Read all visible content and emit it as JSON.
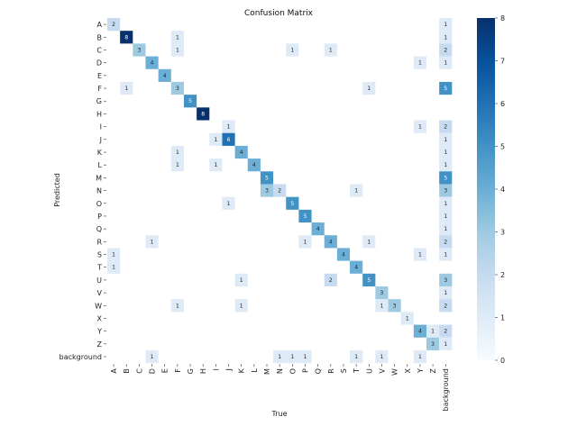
{
  "chart_data": {
    "type": "heatmap",
    "title": "Confusion Matrix",
    "xlabel": "True",
    "ylabel": "Predicted",
    "x_categories": [
      "A",
      "B",
      "C",
      "D",
      "E",
      "F",
      "G",
      "H",
      "I",
      "J",
      "K",
      "L",
      "M",
      "N",
      "O",
      "P",
      "Q",
      "R",
      "S",
      "T",
      "U",
      "V",
      "W",
      "X",
      "Y",
      "Z",
      "background"
    ],
    "y_categories": [
      "A",
      "B",
      "C",
      "D",
      "E",
      "F",
      "G",
      "H",
      "I",
      "J",
      "K",
      "L",
      "M",
      "N",
      "O",
      "P",
      "Q",
      "R",
      "S",
      "T",
      "U",
      "V",
      "W",
      "X",
      "Y",
      "Z",
      "background"
    ],
    "cells": [
      {
        "row": "A",
        "col": "A",
        "value": 2
      },
      {
        "row": "A",
        "col": "background",
        "value": 1
      },
      {
        "row": "B",
        "col": "B",
        "value": 8
      },
      {
        "row": "B",
        "col": "F",
        "value": 1
      },
      {
        "row": "B",
        "col": "background",
        "value": 1
      },
      {
        "row": "C",
        "col": "C",
        "value": 3
      },
      {
        "row": "C",
        "col": "F",
        "value": 1
      },
      {
        "row": "C",
        "col": "O",
        "value": 1
      },
      {
        "row": "C",
        "col": "R",
        "value": 1
      },
      {
        "row": "C",
        "col": "background",
        "value": 2
      },
      {
        "row": "D",
        "col": "D",
        "value": 4
      },
      {
        "row": "D",
        "col": "Y",
        "value": 1
      },
      {
        "row": "D",
        "col": "background",
        "value": 1
      },
      {
        "row": "E",
        "col": "E",
        "value": 4
      },
      {
        "row": "F",
        "col": "B",
        "value": 1
      },
      {
        "row": "F",
        "col": "F",
        "value": 3
      },
      {
        "row": "F",
        "col": "U",
        "value": 1
      },
      {
        "row": "F",
        "col": "background",
        "value": 5
      },
      {
        "row": "G",
        "col": "G",
        "value": 5
      },
      {
        "row": "H",
        "col": "H",
        "value": 8
      },
      {
        "row": "I",
        "col": "J",
        "value": 1
      },
      {
        "row": "I",
        "col": "Y",
        "value": 1
      },
      {
        "row": "I",
        "col": "background",
        "value": 2
      },
      {
        "row": "J",
        "col": "I",
        "value": 1
      },
      {
        "row": "J",
        "col": "J",
        "value": 6
      },
      {
        "row": "J",
        "col": "background",
        "value": 1
      },
      {
        "row": "K",
        "col": "F",
        "value": 1
      },
      {
        "row": "K",
        "col": "K",
        "value": 4
      },
      {
        "row": "K",
        "col": "background",
        "value": 1
      },
      {
        "row": "L",
        "col": "F",
        "value": 1
      },
      {
        "row": "L",
        "col": "I",
        "value": 1
      },
      {
        "row": "L",
        "col": "L",
        "value": 4
      },
      {
        "row": "L",
        "col": "background",
        "value": 1
      },
      {
        "row": "M",
        "col": "M",
        "value": 5
      },
      {
        "row": "M",
        "col": "background",
        "value": 5
      },
      {
        "row": "N",
        "col": "M",
        "value": 3
      },
      {
        "row": "N",
        "col": "N",
        "value": 2
      },
      {
        "row": "N",
        "col": "T",
        "value": 1
      },
      {
        "row": "N",
        "col": "background",
        "value": 3
      },
      {
        "row": "O",
        "col": "J",
        "value": 1
      },
      {
        "row": "O",
        "col": "O",
        "value": 5
      },
      {
        "row": "O",
        "col": "background",
        "value": 1
      },
      {
        "row": "P",
        "col": "P",
        "value": 5
      },
      {
        "row": "P",
        "col": "background",
        "value": 1
      },
      {
        "row": "Q",
        "col": "Q",
        "value": 4
      },
      {
        "row": "Q",
        "col": "background",
        "value": 1
      },
      {
        "row": "R",
        "col": "D",
        "value": 1
      },
      {
        "row": "R",
        "col": "P",
        "value": 1
      },
      {
        "row": "R",
        "col": "R",
        "value": 4
      },
      {
        "row": "R",
        "col": "U",
        "value": 1
      },
      {
        "row": "R",
        "col": "background",
        "value": 2
      },
      {
        "row": "S",
        "col": "A",
        "value": 1
      },
      {
        "row": "S",
        "col": "S",
        "value": 4
      },
      {
        "row": "S",
        "col": "Y",
        "value": 1
      },
      {
        "row": "S",
        "col": "background",
        "value": 1
      },
      {
        "row": "T",
        "col": "A",
        "value": 1
      },
      {
        "row": "T",
        "col": "T",
        "value": 4
      },
      {
        "row": "U",
        "col": "K",
        "value": 1
      },
      {
        "row": "U",
        "col": "R",
        "value": 2
      },
      {
        "row": "U",
        "col": "U",
        "value": 5
      },
      {
        "row": "U",
        "col": "background",
        "value": 3
      },
      {
        "row": "V",
        "col": "V",
        "value": 3
      },
      {
        "row": "V",
        "col": "background",
        "value": 1
      },
      {
        "row": "W",
        "col": "F",
        "value": 1
      },
      {
        "row": "W",
        "col": "K",
        "value": 1
      },
      {
        "row": "W",
        "col": "V",
        "value": 1
      },
      {
        "row": "W",
        "col": "W",
        "value": 3
      },
      {
        "row": "W",
        "col": "background",
        "value": 2
      },
      {
        "row": "X",
        "col": "X",
        "value": 1
      },
      {
        "row": "Y",
        "col": "Y",
        "value": 4
      },
      {
        "row": "Y",
        "col": "Z",
        "value": 1
      },
      {
        "row": "Y",
        "col": "background",
        "value": 2
      },
      {
        "row": "Z",
        "col": "Z",
        "value": 3
      },
      {
        "row": "Z",
        "col": "background",
        "value": 1
      },
      {
        "row": "background",
        "col": "D",
        "value": 1
      },
      {
        "row": "background",
        "col": "N",
        "value": 1
      },
      {
        "row": "background",
        "col": "O",
        "value": 1
      },
      {
        "row": "background",
        "col": "P",
        "value": 1
      },
      {
        "row": "background",
        "col": "T",
        "value": 1
      },
      {
        "row": "background",
        "col": "V",
        "value": 1
      },
      {
        "row": "background",
        "col": "Y",
        "value": 1
      }
    ],
    "colorbar": {
      "min": 0,
      "max": 8,
      "ticks": [
        "0",
        "1",
        "2",
        "3",
        "4",
        "5",
        "6",
        "7",
        "8"
      ],
      "low_color": "#f7fbff",
      "high_color": "#08306b",
      "colormap": "Blues"
    }
  }
}
